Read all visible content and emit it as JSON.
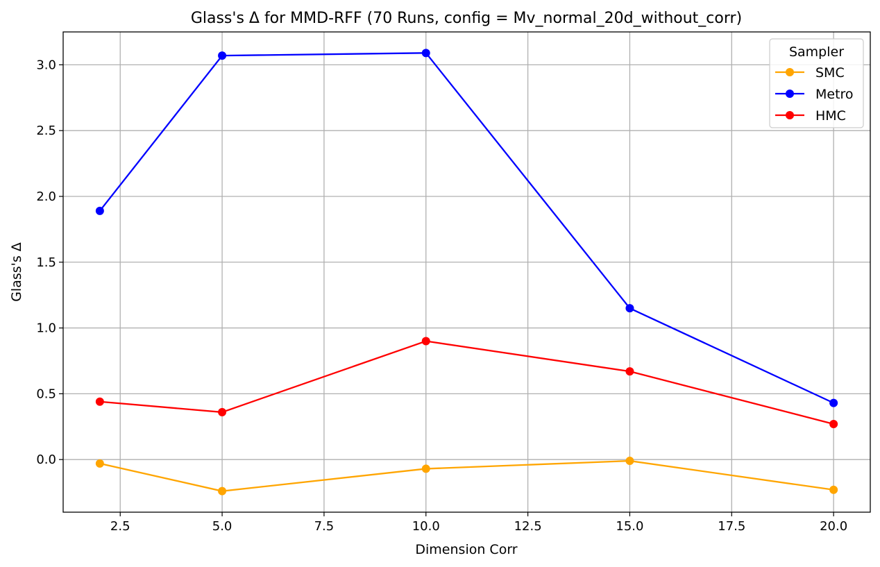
{
  "chart_data": {
    "type": "line",
    "title": "Glass's Δ for MMD-RFF (70 Runs, config = Mv_normal_20d_without_corr)",
    "xlabel": "Dimension Corr",
    "ylabel": "Glass's Δ",
    "xlim": [
      1.1,
      20.9
    ],
    "ylim": [
      -0.4,
      3.25
    ],
    "x_ticks": [
      2.5,
      5.0,
      7.5,
      10.0,
      12.5,
      15.0,
      17.5,
      20.0
    ],
    "y_ticks": [
      0.0,
      0.5,
      1.0,
      1.5,
      2.0,
      2.5,
      3.0
    ],
    "x_tick_labels": [
      "2.5",
      "5.0",
      "7.5",
      "10.0",
      "12.5",
      "15.0",
      "17.5",
      "20.0"
    ],
    "y_tick_labels": [
      "0.0",
      "0.5",
      "1.0",
      "1.5",
      "2.0",
      "2.5",
      "3.0"
    ],
    "grid": true,
    "legend": {
      "title": "Sampler",
      "position": "top-right"
    },
    "x": [
      2,
      5,
      10,
      15,
      20
    ],
    "series": [
      {
        "name": "SMC",
        "color": "#ffa500",
        "values": [
          -0.03,
          -0.24,
          -0.07,
          -0.01,
          -0.23
        ]
      },
      {
        "name": "Metro",
        "color": "#0000ff",
        "values": [
          1.89,
          3.07,
          3.09,
          1.15,
          0.43
        ]
      },
      {
        "name": "HMC",
        "color": "#ff0000",
        "values": [
          0.44,
          0.36,
          0.9,
          0.67,
          0.27
        ]
      }
    ]
  }
}
